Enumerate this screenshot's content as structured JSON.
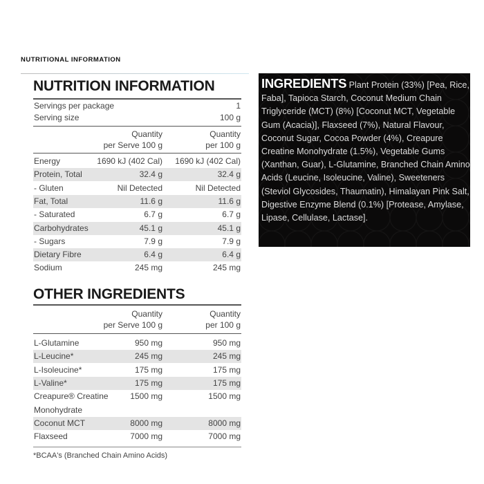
{
  "header": "NUTRITIONAL INFORMATION",
  "nutrition": {
    "title": "NUTRITION INFORMATION",
    "servings_label": "Servings per package",
    "servings_value": "1",
    "size_label": "Serving size",
    "size_value": "100 g",
    "col1": [
      "Quantity",
      "per Serve 100 g"
    ],
    "col2": [
      "Quantity",
      "per 100 g"
    ],
    "rows": [
      [
        "Energy",
        "1690 kJ (402 Cal)",
        "1690 kJ (402 Cal)"
      ],
      [
        "Protein, Total",
        "32.4 g",
        "32.4 g"
      ],
      [
        "- Gluten",
        "Nil Detected",
        "Nil Detected"
      ],
      [
        "Fat, Total",
        "11.6 g",
        "11.6 g"
      ],
      [
        "- Saturated",
        "6.7 g",
        "6.7 g"
      ],
      [
        "Carbohydrates",
        "45.1 g",
        "45.1 g"
      ],
      [
        "- Sugars",
        "7.9 g",
        "7.9 g"
      ],
      [
        "Dietary Fibre",
        "6.4 g",
        "6.4 g"
      ],
      [
        "Sodium",
        "245 mg",
        "245 mg"
      ]
    ]
  },
  "other": {
    "title": "OTHER INGREDIENTS",
    "col1": [
      "Quantity",
      "per Serve 100 g"
    ],
    "col2": [
      "Quantity",
      "per 100 g"
    ],
    "rows": [
      [
        "L-Glutamine",
        "950 mg",
        "950 mg"
      ],
      [
        "L-Leucine*",
        "245 mg",
        "245 mg"
      ],
      [
        "L-Isoleucine*",
        "175 mg",
        "175 mg"
      ],
      [
        "L-Valine*",
        "175 mg",
        "175 mg"
      ],
      [
        "Creapure® Creatine",
        "1500 mg",
        "1500 mg"
      ],
      [
        "Monohydrate",
        "",
        ""
      ],
      [
        "Coconut MCT",
        "8000 mg",
        "8000 mg"
      ],
      [
        "Flaxseed",
        "7000 mg",
        "7000 mg"
      ]
    ],
    "footnote": "*BCAA's (Branched Chain Amino Acids)"
  },
  "ingredients": {
    "title": "INGREDIENTS",
    "text": " Plant Protein (33%) [Pea, Rice, Faba], Tapioca Starch, Coconut Medium Chain Triglyceride (MCT) (8%) [Coconut MCT, Vegetable Gum (Acacia)], Flaxseed (7%), Natural Flavour, Coconut Sugar, Cocoa Powder (4%), Creapure Creatine Monohydrate (1.5%), Vegetable Gums (Xanthan, Guar), L-Glutamine, Branched Chain Amino Acids (Leucine, Isoleucine, Valine), Sweeteners (Steviol Glycosides, Thaumatin), Himalayan Pink Salt, Digestive Enzyme Blend (0.1%) [Protease, Amylase, Lipase, Cellulase, Lactase]."
  }
}
